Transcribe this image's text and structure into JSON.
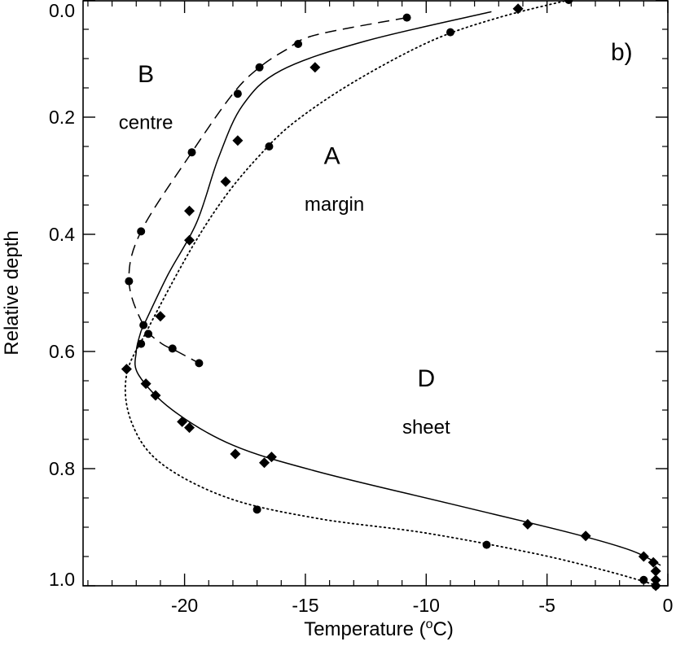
{
  "chart_data": {
    "type": "scatter",
    "panel_label": "b)",
    "xlabel": "Temperature (",
    "xlabel_sup": "o",
    "xlabel_tail": "C)",
    "ylabel": "Relative depth",
    "xlim": [
      -24.2,
      0
    ],
    "ylim": [
      1.0,
      0.0
    ],
    "y_reversed": true,
    "x_ticks": [
      -20,
      -15,
      -10,
      -5,
      0
    ],
    "y_ticks": [
      0.0,
      0.2,
      0.4,
      0.6,
      0.8,
      1.0
    ],
    "y_tick_labels": [
      "0.0",
      "0.2",
      "0.4",
      "0.6",
      "0.8",
      "1.0"
    ],
    "annotations": [
      {
        "id": "B",
        "text": "B",
        "style": "letter",
        "x": -21.6,
        "y": 0.14
      },
      {
        "id": "centre",
        "text": "centre",
        "style": "word",
        "x": -21.6,
        "y": 0.22
      },
      {
        "id": "A",
        "text": "A",
        "style": "letter",
        "x": -13.9,
        "y": 0.28
      },
      {
        "id": "margin",
        "text": "margin",
        "style": "word",
        "x": -13.8,
        "y": 0.36
      },
      {
        "id": "D",
        "text": "D",
        "style": "letter",
        "x": -10.0,
        "y": 0.66
      },
      {
        "id": "sheet",
        "text": "sheet",
        "style": "word",
        "x": -10.0,
        "y": 0.74
      }
    ],
    "series": [
      {
        "id": "B-points",
        "marker": "circle",
        "points": [
          [
            -10.8,
            0.03
          ],
          [
            -15.3,
            0.075
          ],
          [
            -16.9,
            0.115
          ],
          [
            -17.8,
            0.16
          ],
          [
            -19.7,
            0.26
          ],
          [
            -21.8,
            0.395
          ],
          [
            -22.3,
            0.48
          ],
          [
            -21.7,
            0.555
          ],
          [
            -21.5,
            0.57
          ],
          [
            -21.8,
            0.587
          ],
          [
            -20.5,
            0.595
          ],
          [
            -19.4,
            0.62
          ]
        ]
      },
      {
        "id": "A-D-points",
        "marker": "diamond",
        "points": [
          [
            -6.2,
            0.015
          ],
          [
            -14.6,
            0.115
          ],
          [
            -17.8,
            0.24
          ],
          [
            -18.3,
            0.31
          ],
          [
            -19.8,
            0.36
          ],
          [
            -19.8,
            0.41
          ],
          [
            -21.0,
            0.54
          ],
          [
            -22.4,
            0.63
          ],
          [
            -21.6,
            0.655
          ],
          [
            -21.2,
            0.675
          ],
          [
            -20.1,
            0.72
          ],
          [
            -19.8,
            0.73
          ],
          [
            -17.9,
            0.775
          ],
          [
            -16.7,
            0.79
          ],
          [
            -16.4,
            0.78
          ],
          [
            -5.8,
            0.895
          ],
          [
            -3.4,
            0.915
          ],
          [
            -1.0,
            0.95
          ],
          [
            -0.6,
            0.96
          ],
          [
            -0.5,
            0.975
          ],
          [
            -0.5,
            0.99
          ],
          [
            -0.5,
            1.0
          ]
        ]
      },
      {
        "id": "margin-sheet-points",
        "marker": "circle",
        "points": [
          [
            -4.1,
            0.0
          ],
          [
            -9.0,
            0.055
          ],
          [
            -16.5,
            0.25
          ],
          [
            -17.0,
            0.87
          ],
          [
            -7.5,
            0.93
          ],
          [
            -1.0,
            0.99
          ],
          [
            -0.5,
            1.0
          ]
        ]
      }
    ],
    "curves": [
      {
        "id": "curve-B",
        "style": "dashed",
        "points": [
          [
            -10.8,
            0.03
          ],
          [
            -14.6,
            0.06
          ],
          [
            -15.8,
            0.085
          ],
          [
            -16.9,
            0.115
          ],
          [
            -18.0,
            0.16
          ],
          [
            -19.7,
            0.26
          ],
          [
            -21.8,
            0.395
          ],
          [
            -22.3,
            0.48
          ],
          [
            -21.7,
            0.555
          ],
          [
            -21.0,
            0.585
          ],
          [
            -20.3,
            0.6
          ],
          [
            -19.4,
            0.62
          ]
        ]
      },
      {
        "id": "curve-A",
        "style": "solid",
        "points": [
          [
            -7.3,
            0.02
          ],
          [
            -12.5,
            0.07
          ],
          [
            -16.0,
            0.12
          ],
          [
            -17.6,
            0.18
          ],
          [
            -18.6,
            0.27
          ],
          [
            -19.5,
            0.38
          ],
          [
            -20.7,
            0.47
          ],
          [
            -21.8,
            0.565
          ]
        ]
      },
      {
        "id": "curve-D",
        "style": "solid",
        "points": [
          [
            -21.8,
            0.565
          ],
          [
            -22.0,
            0.6
          ],
          [
            -21.9,
            0.64
          ],
          [
            -20.5,
            0.7
          ],
          [
            -18.0,
            0.76
          ],
          [
            -14.5,
            0.805
          ],
          [
            -9.0,
            0.86
          ],
          [
            -4.0,
            0.91
          ],
          [
            -1.5,
            0.94
          ],
          [
            -0.3,
            0.965
          ]
        ]
      },
      {
        "id": "curve-margin-sheet",
        "style": "dotted",
        "points": [
          [
            -4.1,
            0.0
          ],
          [
            -7.0,
            0.03
          ],
          [
            -9.8,
            0.07
          ],
          [
            -13.0,
            0.14
          ],
          [
            -15.5,
            0.21
          ],
          [
            -17.0,
            0.27
          ],
          [
            -18.4,
            0.34
          ],
          [
            -19.8,
            0.43
          ],
          [
            -21.5,
            0.56
          ],
          [
            -22.4,
            0.64
          ],
          [
            -22.2,
            0.72
          ],
          [
            -21.0,
            0.79
          ],
          [
            -18.2,
            0.85
          ],
          [
            -14.5,
            0.885
          ],
          [
            -10.0,
            0.91
          ],
          [
            -5.5,
            0.945
          ],
          [
            -2.5,
            0.975
          ],
          [
            -0.4,
            1.0
          ]
        ]
      }
    ]
  }
}
